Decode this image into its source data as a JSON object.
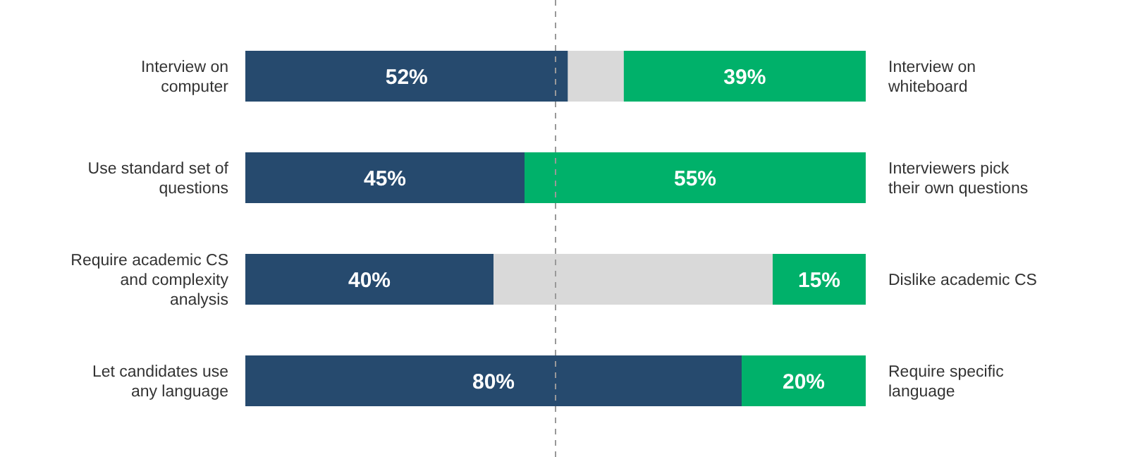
{
  "chart_data": {
    "type": "bar",
    "orientation": "horizontal",
    "stacked": true,
    "tick_labels": "y",
    "xlim": [
      0,
      100
    ],
    "categories": [
      "Interview on computer",
      "Use standard set of questions",
      "Require academic CS and complexity analysis",
      "Let candidates use any language"
    ],
    "series": [
      {
        "color": "#264a6e",
        "values": [
          52,
          45,
          40,
          80
        ],
        "value_labels": [
          "52%",
          "45%",
          "40%",
          "80%"
        ]
      },
      {
        "color": "#d9d9d9",
        "values": [
          9,
          0,
          45,
          0
        ],
        "value_labels": [
          null,
          null,
          null,
          null
        ]
      },
      {
        "color": "#00b16a",
        "values": [
          39,
          55,
          15,
          20
        ],
        "value_labels": [
          "39%",
          "55%",
          "15%",
          "20%"
        ]
      }
    ],
    "annotations": [
      "Interview on whiteboard",
      "Interviewers pick their own questions",
      "Dislike academic CS",
      "Require specific language"
    ],
    "ref_lines": [
      {
        "axis": "x",
        "value": 50,
        "color": "#999999",
        "line_style": "dashed"
      }
    ]
  }
}
